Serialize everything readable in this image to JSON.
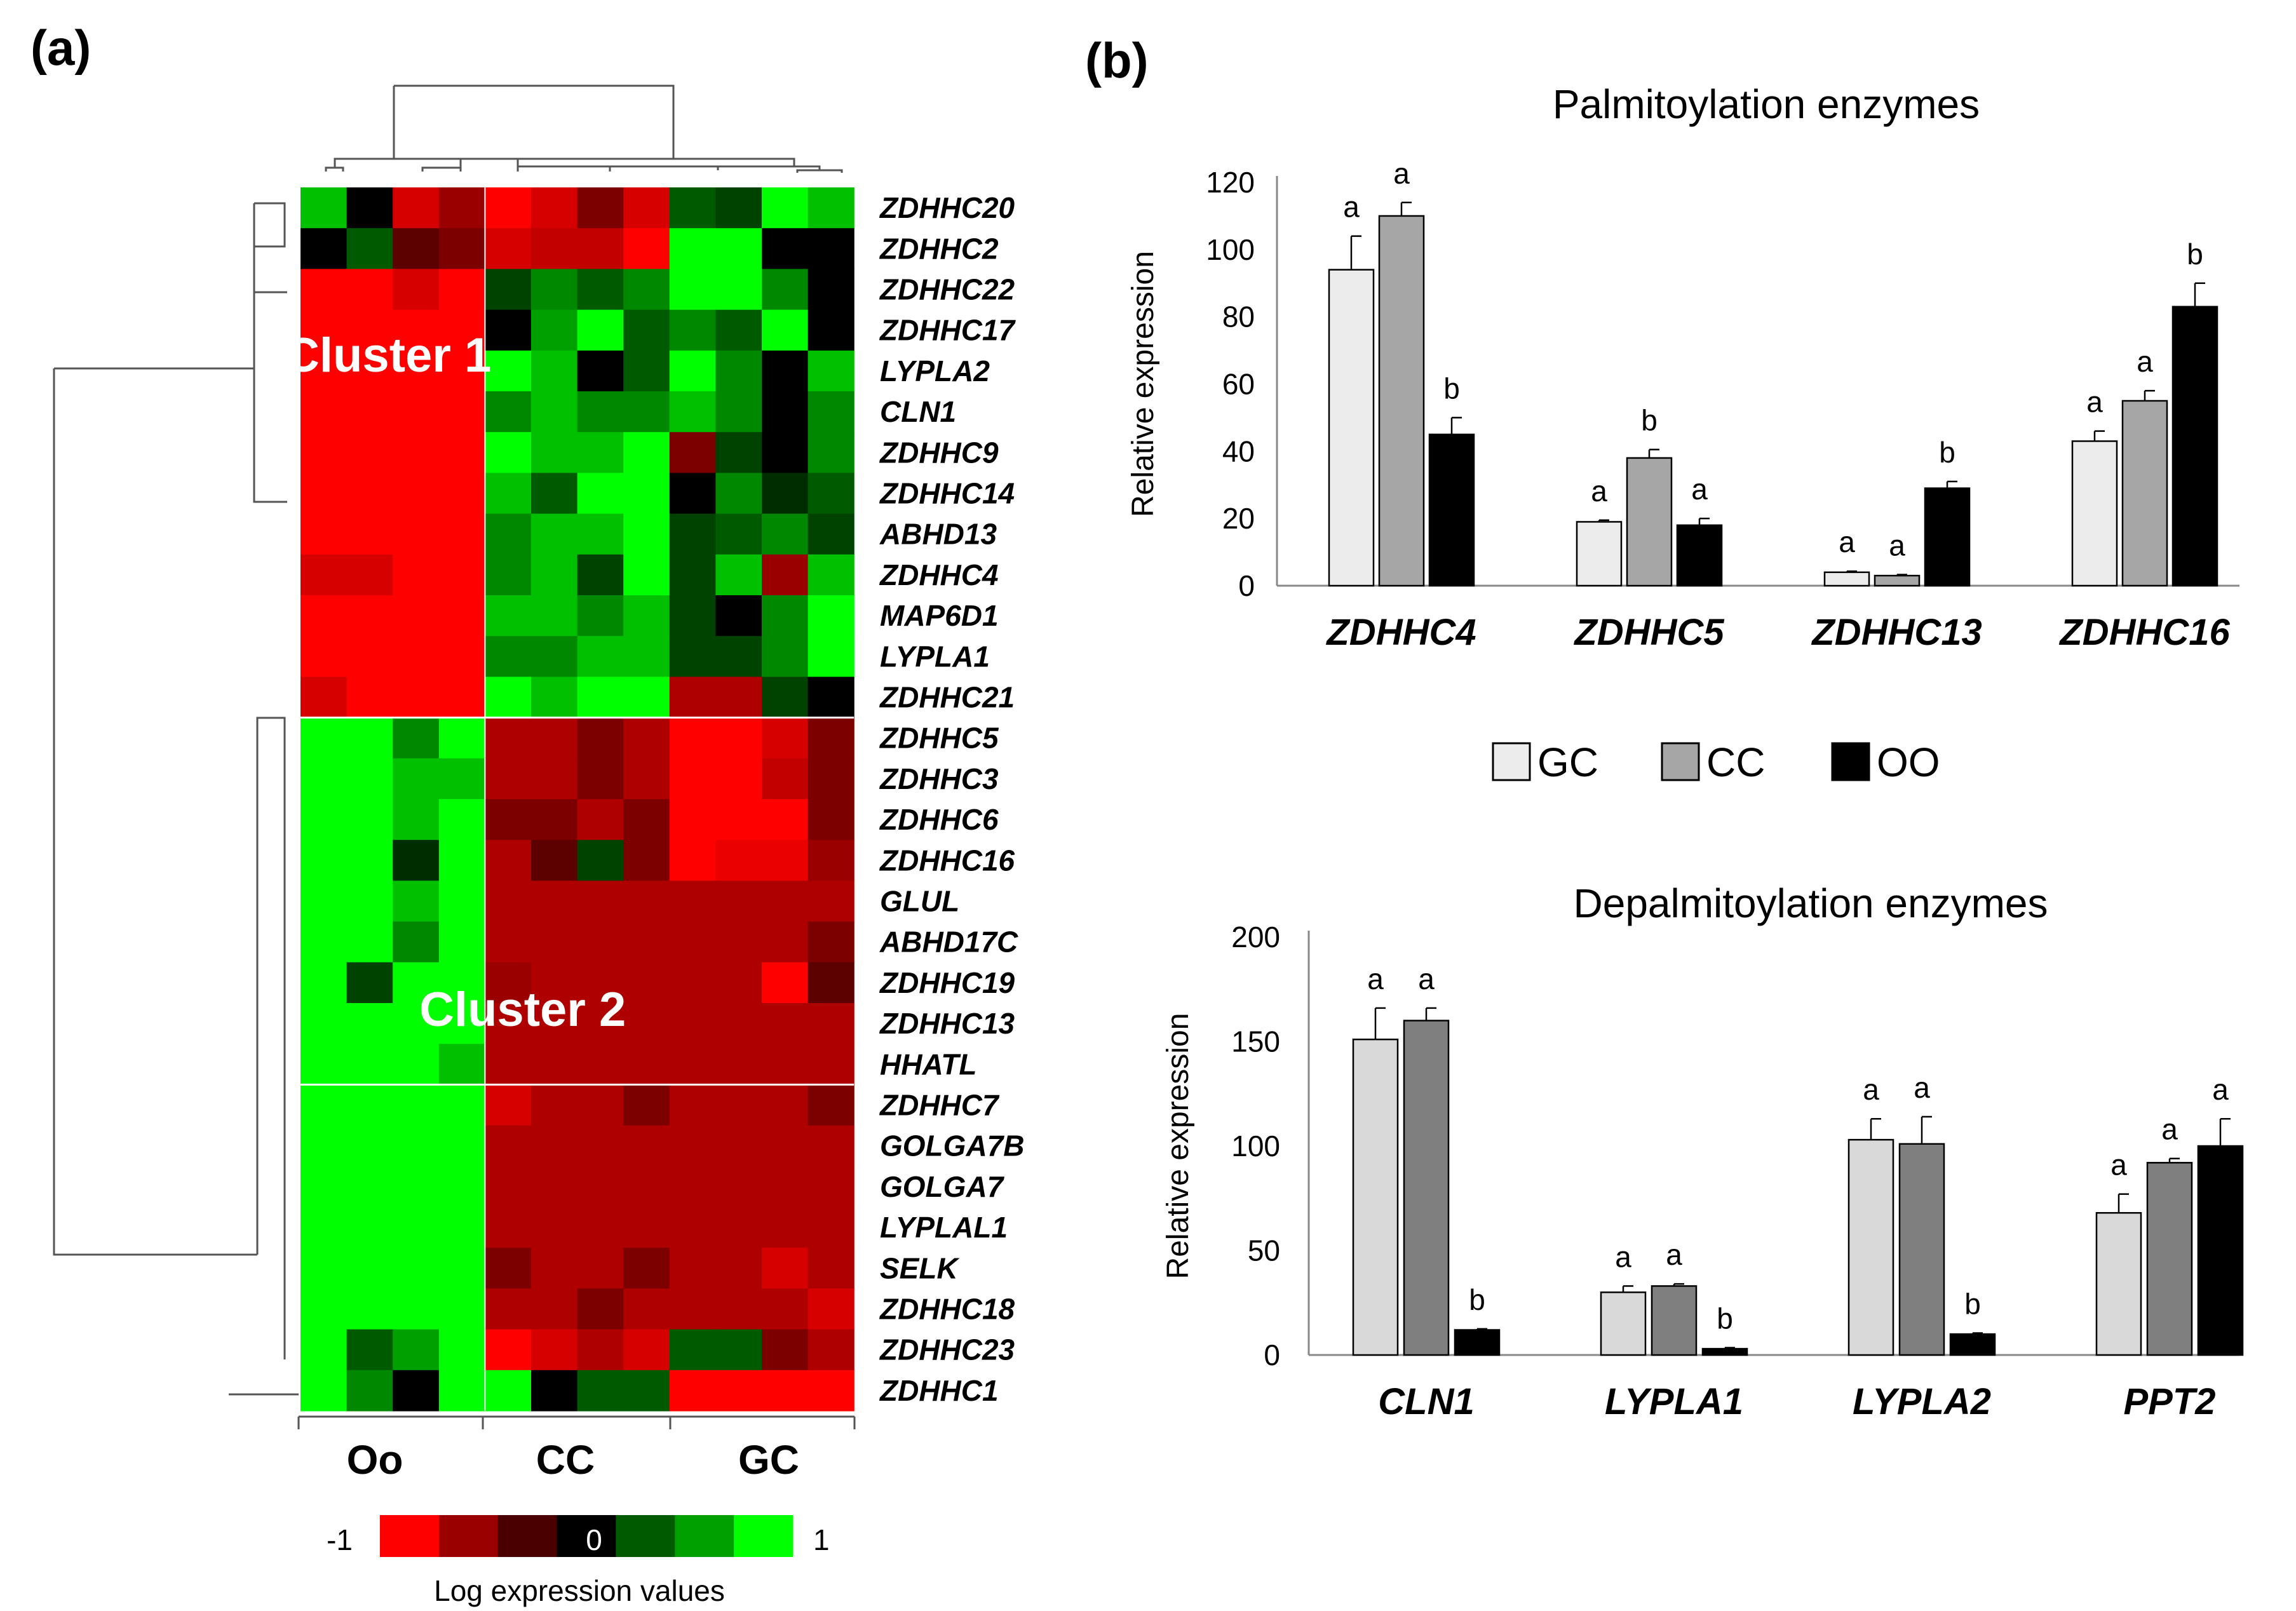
{
  "panel_labels": {
    "a": "(a)",
    "b": "(b)"
  },
  "heatmap": {
    "genes": [
      "ZDHHC20",
      "ZDHHC2",
      "ZDHHC22",
      "ZDHHC17",
      "LYPLA2",
      "CLN1",
      "ZDHHC9",
      "ZDHHC14",
      "ABHD13",
      "ZDHHC4",
      "MAP6D1",
      "LYPLA1",
      "ZDHHC21",
      "ZDHHC5",
      "ZDHHC3",
      "ZDHHC6",
      "ZDHHC16",
      "GLUL",
      "ABHD17C",
      "ZDHHC19",
      "ZDHHC13",
      "HHATL",
      "ZDHHC7",
      "GOLGA7B",
      "GOLGA7",
      "LYPLAL1",
      "SELK",
      "ZDHHC18",
      "ZDHHC23",
      "ZDHHC1"
    ],
    "groups": [
      "Oo",
      "CC",
      "GC"
    ],
    "cluster_labels": [
      "Cluster 1",
      "Cluster 2"
    ],
    "values": [
      [
        0.8,
        0,
        -0.8,
        -0.5,
        -1,
        -0.8,
        -0.4,
        -0.8,
        0.4,
        0.3,
        1,
        0.8
      ],
      [
        0,
        0.4,
        -0.3,
        -0.4,
        -0.8,
        -0.7,
        -0.7,
        -1,
        1,
        1,
        0,
        0
      ],
      [
        -1,
        -1,
        -0.8,
        -1,
        0.3,
        0.6,
        0.4,
        0.6,
        1,
        1,
        0.6,
        0
      ],
      [
        -1,
        -1,
        -1,
        -1,
        0,
        0.7,
        1,
        0.4,
        0.6,
        0.4,
        1,
        0
      ],
      [
        -1,
        -1,
        -1,
        -1,
        1,
        0.8,
        0,
        0.4,
        1,
        0.6,
        0,
        0.8
      ],
      [
        -1,
        -1,
        -1,
        -1,
        0.6,
        0.8,
        0.6,
        0.6,
        0.8,
        0.6,
        0,
        0.6
      ],
      [
        -1,
        -1,
        -1,
        -1,
        1,
        0.8,
        0.8,
        1,
        -0.4,
        0.3,
        0,
        0.6
      ],
      [
        -1,
        -1,
        -1,
        -1,
        0.8,
        0.4,
        1,
        1,
        0,
        0.6,
        0.2,
        0.4
      ],
      [
        -1,
        -1,
        -1,
        -1,
        0.6,
        0.8,
        0.8,
        1,
        0.3,
        0.4,
        0.6,
        0.3
      ],
      [
        -0.8,
        -0.8,
        -1,
        -1,
        0.6,
        0.8,
        0.3,
        1,
        0.3,
        0.8,
        -0.5,
        0.8
      ],
      [
        -1,
        -1,
        -1,
        -1,
        0.8,
        0.8,
        0.6,
        0.8,
        0.3,
        0,
        0.6,
        1
      ],
      [
        -1,
        -1,
        -1,
        -1,
        0.6,
        0.6,
        0.8,
        0.8,
        0.3,
        0.3,
        0.6,
        1
      ],
      [
        -0.8,
        -1,
        -1,
        -1,
        1,
        0.8,
        1,
        1,
        -0.6,
        -0.6,
        0.3,
        0
      ],
      [
        1,
        1,
        0.6,
        1,
        -0.6,
        -0.6,
        -0.4,
        -0.6,
        -1,
        -1,
        -0.8,
        -0.4
      ],
      [
        1,
        1,
        0.8,
        0.8,
        -0.6,
        -0.6,
        -0.4,
        -0.6,
        -1,
        -1,
        -0.7,
        -0.4
      ],
      [
        1,
        1,
        0.8,
        1,
        -0.4,
        -0.4,
        -0.6,
        -0.4,
        -1,
        -1,
        -1,
        -0.4
      ],
      [
        1,
        1,
        0.2,
        1,
        -0.6,
        -0.3,
        0.3,
        -0.4,
        -1,
        -0.9,
        -0.9,
        -0.5
      ],
      [
        1,
        1,
        0.8,
        1,
        -0.6,
        -0.6,
        -0.6,
        -0.6,
        -0.6,
        -0.6,
        -0.6,
        -0.6
      ],
      [
        1,
        1,
        0.6,
        1,
        -0.6,
        -0.6,
        -0.6,
        -0.6,
        -0.6,
        -0.6,
        -0.6,
        -0.4
      ],
      [
        1,
        0.3,
        1,
        1,
        -0.5,
        -0.6,
        -0.6,
        -0.6,
        -0.6,
        -0.6,
        -1,
        -0.3
      ],
      [
        1,
        1,
        1,
        1,
        -0.6,
        -0.6,
        -0.6,
        -0.6,
        -0.6,
        -0.6,
        -0.6,
        -0.6
      ],
      [
        1,
        1,
        1,
        0.8,
        -0.6,
        -0.6,
        -0.6,
        -0.6,
        -0.6,
        -0.6,
        -0.6,
        -0.6
      ],
      [
        1,
        1,
        1,
        1,
        -0.8,
        -0.6,
        -0.6,
        -0.4,
        -0.6,
        -0.6,
        -0.6,
        -0.4
      ],
      [
        1,
        1,
        1,
        1,
        -0.6,
        -0.6,
        -0.6,
        -0.6,
        -0.6,
        -0.6,
        -0.6,
        -0.6
      ],
      [
        1,
        1,
        1,
        1,
        -0.6,
        -0.6,
        -0.6,
        -0.6,
        -0.6,
        -0.6,
        -0.6,
        -0.6
      ],
      [
        1,
        1,
        1,
        1,
        -0.6,
        -0.6,
        -0.6,
        -0.6,
        -0.6,
        -0.6,
        -0.6,
        -0.6
      ],
      [
        1,
        1,
        1,
        1,
        -0.4,
        -0.6,
        -0.6,
        -0.4,
        -0.6,
        -0.6,
        -0.8,
        -0.6
      ],
      [
        1,
        1,
        1,
        1,
        -0.6,
        -0.6,
        -0.4,
        -0.6,
        -0.6,
        -0.6,
        -0.6,
        -0.8
      ],
      [
        1,
        0.4,
        0.7,
        1,
        -1,
        -0.8,
        -0.6,
        -0.8,
        0.4,
        0.4,
        -0.4,
        -0.6
      ],
      [
        1,
        0.6,
        0,
        1,
        1,
        0,
        0.4,
        0.4,
        -1,
        -1,
        -1,
        -1
      ]
    ],
    "legend": {
      "min_label": "-1",
      "mid_label": "0",
      "max_label": "1",
      "caption": "Log expression values"
    },
    "colors": {
      "red": "#ff0000",
      "dark_red": "#9b0000",
      "black": "#000000",
      "dark_green": "#005a00",
      "green": "#00a000",
      "bright_green": "#00ff00"
    }
  },
  "chart_data": [
    {
      "type": "bar",
      "title": "Palmitoylation enzymes",
      "ylabel": "Relative expression",
      "xlabel": "",
      "ylim": [
        0,
        120
      ],
      "yticks": [
        0,
        20,
        40,
        60,
        80,
        100,
        120
      ],
      "categories": [
        "ZDHHC4",
        "ZDHHC5",
        "ZDHHC13",
        "ZDHHC16"
      ],
      "series": [
        {
          "name": "GC",
          "color": "#ececec",
          "values": [
            94,
            19,
            4,
            43
          ],
          "errors": [
            10,
            0.5,
            0.3,
            3
          ],
          "labels": [
            "a",
            "a",
            "a",
            "a"
          ]
        },
        {
          "name": "CC",
          "color": "#a6a6a6",
          "values": [
            110,
            38,
            3,
            55
          ],
          "errors": [
            4,
            2.5,
            0.3,
            3
          ],
          "labels": [
            "a",
            "b",
            "a",
            "a"
          ]
        },
        {
          "name": "OO",
          "color": "#000000",
          "values": [
            45,
            18,
            29,
            83
          ],
          "errors": [
            5,
            2,
            2,
            7
          ],
          "labels": [
            "b",
            "a",
            "b",
            "b"
          ]
        }
      ],
      "legend": [
        "GC",
        "CC",
        "OO"
      ]
    },
    {
      "type": "bar",
      "title": "Depalmitoylation enzymes",
      "ylabel": "Relative expression",
      "xlabel": "",
      "ylim": [
        0,
        200
      ],
      "yticks": [
        0,
        50,
        100,
        150,
        200
      ],
      "categories": [
        "CLN1",
        "LYPLA1",
        "LYPLA2",
        "PPT2"
      ],
      "series": [
        {
          "name": "GC",
          "color": "#d9d9d9",
          "values": [
            151,
            30,
            103,
            68
          ],
          "errors": [
            15,
            3,
            10,
            9
          ],
          "labels": [
            "a",
            "a",
            "a",
            "a"
          ]
        },
        {
          "name": "CC",
          "color": "#7f7f7f",
          "values": [
            160,
            33,
            101,
            92
          ],
          "errors": [
            6,
            1,
            13,
            2
          ],
          "labels": [
            "a",
            "a",
            "a",
            "a"
          ]
        },
        {
          "name": "OO",
          "color": "#000000",
          "values": [
            12,
            3,
            10,
            100
          ],
          "errors": [
            0.5,
            0.5,
            0.5,
            13
          ],
          "labels": [
            "b",
            "b",
            "b",
            "a"
          ]
        }
      ]
    }
  ]
}
